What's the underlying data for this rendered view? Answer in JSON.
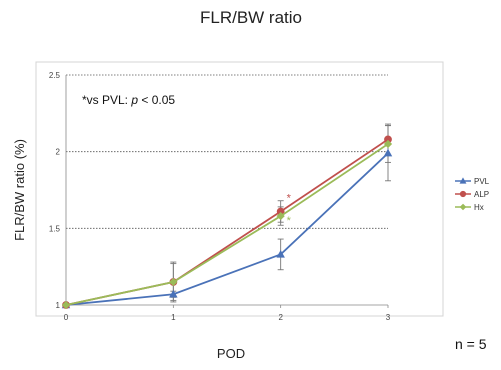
{
  "chart_data": {
    "type": "line",
    "title": "FLR/BW ratio",
    "xlabel": "POD",
    "ylabel": "FLR/BW ratio (%)",
    "x": [
      0,
      1,
      2,
      3
    ],
    "x_ticks": [
      "0",
      "1",
      "2",
      "3"
    ],
    "ylim": [
      1,
      2.5
    ],
    "y_ticks": [
      "1",
      "1.5",
      "2",
      "2.5"
    ],
    "grid": "horizontal dotted",
    "legend_position": "right",
    "series": [
      {
        "name": "PVL",
        "color": "#4a72b8",
        "marker": "triangle",
        "values": [
          1.0,
          1.07,
          1.33,
          1.99
        ],
        "error": [
          0,
          0.02,
          0.1,
          0.18
        ]
      },
      {
        "name": "ALP",
        "color": "#c0504d",
        "marker": "circle",
        "values": [
          1.0,
          1.15,
          1.61,
          2.08
        ],
        "error": [
          0,
          0.12,
          0.07,
          0.1
        ]
      },
      {
        "name": "Hx",
        "color": "#9bbb59",
        "marker": "diamond",
        "values": [
          1.0,
          1.15,
          1.58,
          2.05
        ],
        "error": [
          0,
          0.13,
          0.06,
          0.12
        ]
      }
    ],
    "significance_marks": [
      {
        "x": 2,
        "series": "ALP",
        "text": "*"
      },
      {
        "x": 2,
        "series": "Hx",
        "text": "*"
      }
    ],
    "annotation": {
      "prefix": "*vs PVL: ",
      "italic": "p",
      "suffix": " < 0.05"
    },
    "n_label": "n = 5"
  }
}
